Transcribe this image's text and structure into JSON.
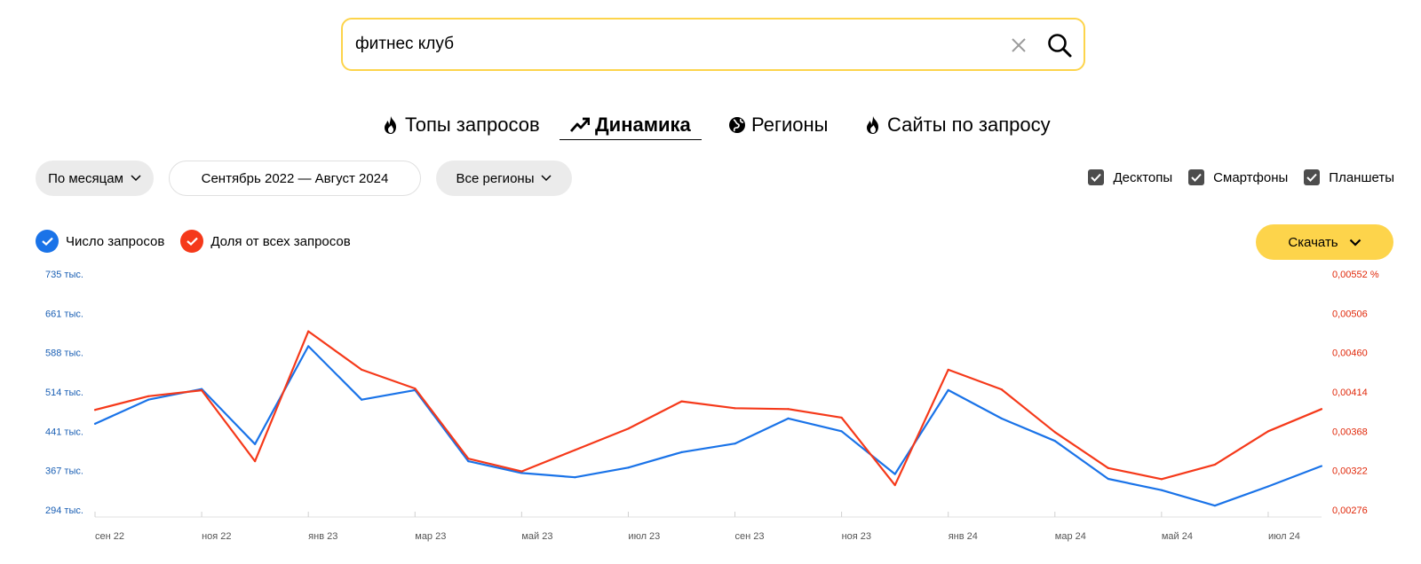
{
  "search": {
    "value": "фитнес клуб",
    "placeholder": ""
  },
  "tabs": [
    {
      "label": "Топы запросов",
      "icon": "fire-icon",
      "active": false
    },
    {
      "label": "Динамика",
      "icon": "trend-up-icon",
      "active": true
    },
    {
      "label": "Регионы",
      "icon": "globe-icon",
      "active": false
    },
    {
      "label": "Сайты по запросу",
      "icon": "fire-icon",
      "active": false
    }
  ],
  "filters": {
    "period": "По месяцам",
    "date_range": "Сентябрь 2022 — Август 2024",
    "region": "Все регионы"
  },
  "devices": [
    {
      "label": "Десктопы",
      "checked": true
    },
    {
      "label": "Смартфоны",
      "checked": true
    },
    {
      "label": "Планшеты",
      "checked": true
    }
  ],
  "legend": [
    {
      "label": "Число запросов",
      "color": "#1a73e8",
      "checked": true
    },
    {
      "label": "Доля от всех запросов",
      "color": "#f5391a",
      "checked": true
    }
  ],
  "download_label": "Скачать",
  "chart_data": {
    "type": "line",
    "x_tick_labels": [
      "сен 22",
      "ноя 22",
      "янв 23",
      "мар 23",
      "май 23",
      "июл 23",
      "сен 23",
      "ноя 23",
      "янв 24",
      "мар 24",
      "май 24",
      "июл 24"
    ],
    "x": [
      "2022-09",
      "2022-10",
      "2022-11",
      "2022-12",
      "2023-01",
      "2023-02",
      "2023-03",
      "2023-04",
      "2023-05",
      "2023-06",
      "2023-07",
      "2023-08",
      "2023-09",
      "2023-10",
      "2023-11",
      "2023-12",
      "2024-01",
      "2024-02",
      "2024-03",
      "2024-04",
      "2024-05",
      "2024-06",
      "2024-07",
      "2024-08"
    ],
    "y_left_tick_labels": [
      "735 тыс.",
      "661 тыс.",
      "588 тыс.",
      "514 тыс.",
      "441 тыс.",
      "367 тыс.",
      "294 тыс."
    ],
    "y_right_tick_labels": [
      "0,00552 %",
      "0,00506",
      "0,00460",
      "0,00414",
      "0,00368",
      "0,00322",
      "0,00276"
    ],
    "y_left_lim": [
      294000,
      735000
    ],
    "y_right_lim": [
      0.00276,
      0.00552
    ],
    "series": [
      {
        "name": "Число запросов",
        "axis": "left",
        "color": "#1a73e8",
        "values": [
          455000,
          500000,
          520000,
          417000,
          600000,
          500000,
          518000,
          385000,
          363000,
          355000,
          373000,
          402000,
          418000,
          465000,
          441000,
          361000,
          518000,
          465000,
          423000,
          352000,
          331000,
          302000,
          338000,
          376000
        ]
      },
      {
        "name": "Доля от всех запросов",
        "axis": "right",
        "color": "#f5391a",
        "values": [
          0.00393,
          0.00409,
          0.00416,
          0.00333,
          0.00485,
          0.0044,
          0.00418,
          0.00336,
          0.00321,
          0.00346,
          0.00371,
          0.00403,
          0.00395,
          0.00394,
          0.00384,
          0.00305,
          0.0044,
          0.00417,
          0.00367,
          0.00325,
          0.00312,
          0.00329,
          0.00368,
          0.00394
        ]
      }
    ]
  }
}
